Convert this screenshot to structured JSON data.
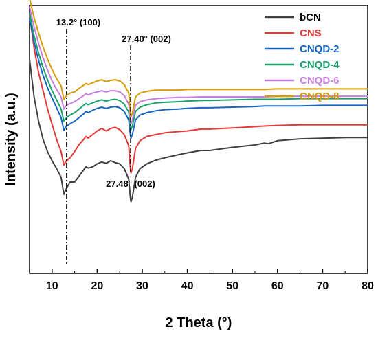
{
  "chart_data": {
    "type": "line",
    "title": "",
    "xlabel": "2 Theta (°)",
    "ylabel": "Intensity (a.u.)",
    "xlim": [
      5,
      80
    ],
    "x_ticks": [
      "10",
      "20",
      "30",
      "40",
      "50",
      "60",
      "70",
      "80"
    ],
    "y_ticks_shown": false,
    "grid": false,
    "legend_position": "top-right",
    "annotations": [
      {
        "text": "13.2° (100)",
        "x": 13.2
      },
      {
        "text": "27.40° (002)",
        "x": 27.4
      },
      {
        "text": "27.48° (002)",
        "x": 27.48
      }
    ],
    "series": [
      {
        "name": "bCN",
        "color": "#3f3f3f",
        "baseline": 6,
        "level": 0,
        "points": [
          [
            5,
            352
          ],
          [
            6,
            290
          ],
          [
            7,
            250
          ],
          [
            8,
            220
          ],
          [
            9,
            200
          ],
          [
            10,
            185
          ],
          [
            11,
            172
          ],
          [
            12,
            158
          ],
          [
            12.6,
            130
          ],
          [
            13.2,
            140
          ],
          [
            14,
            150
          ],
          [
            15,
            150
          ],
          [
            16,
            160
          ],
          [
            17,
            170
          ],
          [
            17.5,
            175
          ],
          [
            18,
            173
          ],
          [
            19,
            175
          ],
          [
            20,
            180
          ],
          [
            21,
            183
          ],
          [
            22,
            181
          ],
          [
            23,
            185
          ],
          [
            24,
            182
          ],
          [
            25,
            180
          ],
          [
            26,
            172
          ],
          [
            27,
            155
          ],
          [
            27.4,
            122
          ],
          [
            27.5,
            118
          ],
          [
            27.8,
            125
          ],
          [
            28.5,
            158
          ],
          [
            29.5,
            172
          ],
          [
            31,
            180
          ],
          [
            33,
            186
          ],
          [
            35,
            190
          ],
          [
            38,
            195
          ],
          [
            40,
            198
          ],
          [
            43,
            202
          ],
          [
            45,
            202
          ],
          [
            50,
            207
          ],
          [
            55,
            211
          ],
          [
            57,
            214
          ],
          [
            58,
            213
          ],
          [
            60,
            218
          ],
          [
            65,
            221
          ],
          [
            70,
            222
          ],
          [
            75,
            223
          ],
          [
            80,
            223
          ]
        ]
      },
      {
        "name": "CNS",
        "color": "#e53935",
        "baseline": 108,
        "level": 1,
        "points": [
          [
            5,
            425
          ],
          [
            6,
            370
          ],
          [
            7,
            330
          ],
          [
            8,
            300
          ],
          [
            9,
            270
          ],
          [
            10,
            245
          ],
          [
            11,
            220
          ],
          [
            12,
            200
          ],
          [
            12.6,
            178
          ],
          [
            13.2,
            185
          ],
          [
            14,
            190
          ],
          [
            15,
            200
          ],
          [
            16,
            212
          ],
          [
            17,
            220
          ],
          [
            17.5,
            225
          ],
          [
            18,
            222
          ],
          [
            19,
            228
          ],
          [
            20,
            234
          ],
          [
            21,
            238
          ],
          [
            22,
            234
          ],
          [
            23,
            238
          ],
          [
            24,
            240
          ],
          [
            25,
            236
          ],
          [
            26,
            228
          ],
          [
            27,
            210
          ],
          [
            27.4,
            170
          ],
          [
            27.5,
            165
          ],
          [
            27.8,
            172
          ],
          [
            28.5,
            205
          ],
          [
            29.5,
            218
          ],
          [
            31,
            225
          ],
          [
            33,
            228
          ],
          [
            35,
            231
          ],
          [
            38,
            233
          ],
          [
            40,
            234
          ],
          [
            43,
            237
          ],
          [
            45,
            237
          ],
          [
            50,
            239
          ],
          [
            55,
            241
          ],
          [
            57,
            242
          ],
          [
            60,
            243
          ],
          [
            65,
            244
          ],
          [
            70,
            244
          ],
          [
            75,
            244
          ],
          [
            80,
            244
          ]
        ]
      },
      {
        "name": "CNQD-2",
        "color": "#1565c0",
        "baseline": 168,
        "level": 2,
        "points": [
          [
            5,
            420
          ],
          [
            6,
            380
          ],
          [
            7,
            350
          ],
          [
            8,
            325
          ],
          [
            9,
            305
          ],
          [
            10,
            288
          ],
          [
            11,
            272
          ],
          [
            12,
            256
          ],
          [
            12.6,
            235
          ],
          [
            13.2,
            242
          ],
          [
            14,
            246
          ],
          [
            15,
            250
          ],
          [
            16,
            256
          ],
          [
            17,
            262
          ],
          [
            17.5,
            266
          ],
          [
            18,
            264
          ],
          [
            19,
            268
          ],
          [
            20,
            271
          ],
          [
            21,
            273
          ],
          [
            22,
            271
          ],
          [
            23,
            273
          ],
          [
            24,
            274
          ],
          [
            25,
            272
          ],
          [
            26,
            266
          ],
          [
            27,
            252
          ],
          [
            27.4,
            226
          ],
          [
            27.5,
            222
          ],
          [
            27.8,
            228
          ],
          [
            28.5,
            252
          ],
          [
            29.5,
            260
          ],
          [
            31,
            264
          ],
          [
            33,
            267
          ],
          [
            35,
            269
          ],
          [
            38,
            270
          ],
          [
            40,
            271
          ],
          [
            43,
            272
          ],
          [
            45,
            272
          ],
          [
            50,
            273
          ],
          [
            55,
            274
          ],
          [
            57,
            275
          ],
          [
            60,
            275
          ],
          [
            65,
            275
          ],
          [
            70,
            276
          ],
          [
            75,
            276
          ],
          [
            80,
            276
          ]
        ]
      },
      {
        "name": "CNQD-4",
        "color": "#1aa06a",
        "baseline": 184,
        "level": 3,
        "points": [
          [
            5,
            428
          ],
          [
            6,
            390
          ],
          [
            7,
            362
          ],
          [
            8,
            338
          ],
          [
            9,
            318
          ],
          [
            10,
            300
          ],
          [
            11,
            285
          ],
          [
            12,
            270
          ],
          [
            12.6,
            250
          ],
          [
            13.2,
            256
          ],
          [
            14,
            260
          ],
          [
            15,
            264
          ],
          [
            16,
            270
          ],
          [
            17,
            276
          ],
          [
            17.5,
            279
          ],
          [
            18,
            277
          ],
          [
            19,
            280
          ],
          [
            20,
            283
          ],
          [
            21,
            285
          ],
          [
            22,
            283
          ],
          [
            23,
            285
          ],
          [
            24,
            286
          ],
          [
            25,
            284
          ],
          [
            26,
            278
          ],
          [
            27,
            265
          ],
          [
            27.4,
            240
          ],
          [
            27.5,
            236
          ],
          [
            27.8,
            242
          ],
          [
            28.5,
            266
          ],
          [
            29.5,
            273
          ],
          [
            31,
            277
          ],
          [
            33,
            280
          ],
          [
            35,
            281
          ],
          [
            38,
            282
          ],
          [
            40,
            283
          ],
          [
            43,
            284
          ],
          [
            45,
            284
          ],
          [
            50,
            285
          ],
          [
            55,
            286
          ],
          [
            57,
            286
          ],
          [
            60,
            286
          ],
          [
            65,
            287
          ],
          [
            70,
            287
          ],
          [
            75,
            287
          ],
          [
            80,
            287
          ]
        ]
      },
      {
        "name": "CNQD-6",
        "color": "#c77dde",
        "baseline": 188,
        "level": 4,
        "points": [
          [
            5,
            438
          ],
          [
            6,
            405
          ],
          [
            7,
            378
          ],
          [
            8,
            354
          ],
          [
            9,
            334
          ],
          [
            10,
            316
          ],
          [
            11,
            302
          ],
          [
            12,
            290
          ],
          [
            12.6,
            270
          ],
          [
            13.2,
            276
          ],
          [
            14,
            279
          ],
          [
            15,
            282
          ],
          [
            16,
            287
          ],
          [
            17,
            292
          ],
          [
            17.5,
            295
          ],
          [
            18,
            293
          ],
          [
            19,
            296
          ],
          [
            20,
            298
          ],
          [
            21,
            300
          ],
          [
            22,
            298
          ],
          [
            23,
            300
          ],
          [
            24,
            300
          ],
          [
            25,
            298
          ],
          [
            26,
            292
          ],
          [
            27,
            278
          ],
          [
            27.4,
            250
          ],
          [
            27.5,
            246
          ],
          [
            27.8,
            252
          ],
          [
            28.5,
            276
          ],
          [
            29.5,
            282
          ],
          [
            31,
            285
          ],
          [
            33,
            287
          ],
          [
            35,
            288
          ],
          [
            38,
            289
          ],
          [
            40,
            289
          ],
          [
            43,
            290
          ],
          [
            45,
            290
          ],
          [
            50,
            290
          ],
          [
            55,
            290
          ],
          [
            57,
            290
          ],
          [
            60,
            291
          ],
          [
            65,
            291
          ],
          [
            70,
            291
          ],
          [
            75,
            291
          ],
          [
            80,
            291
          ]
        ]
      },
      {
        "name": "CNQD-8",
        "color": "#d49a00",
        "baseline": 200,
        "level": 5,
        "points": [
          [
            5,
            452
          ],
          [
            6,
            420
          ],
          [
            7,
            395
          ],
          [
            8,
            372
          ],
          [
            9,
            352
          ],
          [
            10,
            335
          ],
          [
            11,
            320
          ],
          [
            12,
            308
          ],
          [
            12.6,
            286
          ],
          [
            13.2,
            292
          ],
          [
            14,
            296
          ],
          [
            15,
            298
          ],
          [
            16,
            304
          ],
          [
            17,
            309
          ],
          [
            17.5,
            312
          ],
          [
            18,
            310
          ],
          [
            19,
            313
          ],
          [
            20,
            316
          ],
          [
            21,
            318
          ],
          [
            22,
            315
          ],
          [
            23,
            317
          ],
          [
            24,
            318
          ],
          [
            25,
            316
          ],
          [
            26,
            310
          ],
          [
            27,
            296
          ],
          [
            27.4,
            262
          ],
          [
            27.5,
            257
          ],
          [
            27.8,
            263
          ],
          [
            28.5,
            290
          ],
          [
            29.5,
            296
          ],
          [
            31,
            299
          ],
          [
            33,
            301
          ],
          [
            35,
            301
          ],
          [
            38,
            301
          ],
          [
            40,
            302
          ],
          [
            43,
            302
          ],
          [
            45,
            302
          ],
          [
            50,
            302
          ],
          [
            55,
            302
          ],
          [
            57,
            302
          ],
          [
            60,
            303
          ],
          [
            65,
            303
          ],
          [
            70,
            303
          ],
          [
            75,
            303
          ],
          [
            80,
            303
          ]
        ]
      }
    ]
  }
}
